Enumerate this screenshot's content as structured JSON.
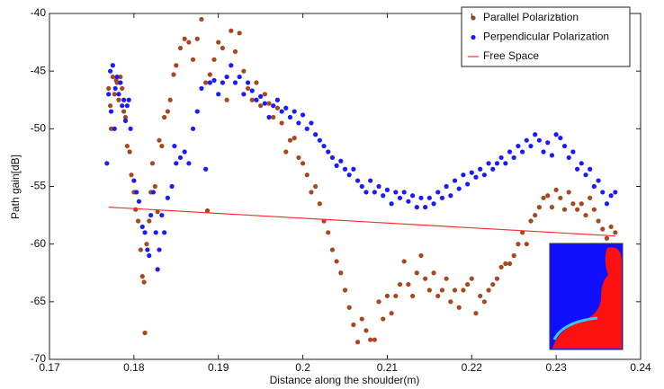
{
  "chart_data": {
    "type": "scatter",
    "x_label": "Distance along the shoulder(m)",
    "y_label": "Path gain[dB]",
    "xlim": [
      0.17,
      0.24
    ],
    "ylim": [
      -70,
      -40
    ],
    "xticks": [
      0.17,
      0.18,
      0.19,
      0.2,
      0.21,
      0.22,
      0.23,
      0.24
    ],
    "yticks": [
      -70,
      -65,
      -60,
      -55,
      -50,
      -45,
      -40
    ],
    "grid": false,
    "legend": "upper right",
    "series": [
      {
        "name": "Parallel Polarization",
        "type": "scatter",
        "color": "#a8471c",
        "x": [
          0.177,
          0.1772,
          0.1773,
          0.1775,
          0.1777,
          0.1779,
          0.178,
          0.1782,
          0.1784,
          0.1786,
          0.1788,
          0.179,
          0.1792,
          0.1795,
          0.1797,
          0.18,
          0.1802,
          0.1805,
          0.1808,
          0.181,
          0.1812,
          0.1813,
          0.1815,
          0.1818,
          0.182,
          0.1822,
          0.1825,
          0.1828,
          0.183,
          0.1833,
          0.1836,
          0.184,
          0.1843,
          0.1847,
          0.185,
          0.1855,
          0.186,
          0.1865,
          0.187,
          0.1875,
          0.188,
          0.1885,
          0.1887,
          0.189,
          0.1895,
          0.19,
          0.1905,
          0.191,
          0.1915,
          0.192,
          0.1925,
          0.193,
          0.1935,
          0.194,
          0.1945,
          0.195,
          0.1955,
          0.196,
          0.1965,
          0.197,
          0.1975,
          0.198,
          0.1985,
          0.199,
          0.1995,
          0.2,
          0.2005,
          0.201,
          0.2015,
          0.202,
          0.2025,
          0.203,
          0.2035,
          0.204,
          0.2045,
          0.205,
          0.2055,
          0.206,
          0.2065,
          0.207,
          0.2075,
          0.208,
          0.2085,
          0.209,
          0.2095,
          0.21,
          0.2105,
          0.211,
          0.2115,
          0.212,
          0.2125,
          0.213,
          0.2135,
          0.214,
          0.2145,
          0.215,
          0.2155,
          0.216,
          0.2165,
          0.217,
          0.2175,
          0.218,
          0.2185,
          0.219,
          0.2195,
          0.22,
          0.2205,
          0.221,
          0.2215,
          0.222,
          0.2225,
          0.223,
          0.2235,
          0.224,
          0.2245,
          0.225,
          0.2255,
          0.226,
          0.2265,
          0.227,
          0.2275,
          0.228,
          0.2285,
          0.229,
          0.2295,
          0.23,
          0.2305,
          0.231,
          0.2315,
          0.232,
          0.2325,
          0.233,
          0.2335,
          0.234,
          0.2345,
          0.235,
          0.2355,
          0.236,
          0.2365,
          0.237
        ],
        "values": [
          -46.5,
          -48,
          -50,
          -45.5,
          -47,
          -45.8,
          -46,
          -47.5,
          -45.5,
          -46.5,
          -48.5,
          -49,
          -51.5,
          -52,
          -54,
          -55.5,
          -57,
          -58,
          -60.5,
          -62.8,
          -63.3,
          -67.7,
          -60,
          -58,
          -55.5,
          -53,
          -55,
          -57.2,
          -51,
          -51.5,
          -49,
          -48.5,
          -47.5,
          -45.3,
          -44.5,
          -43,
          -42.2,
          -42.5,
          -44,
          -42.2,
          -40.5,
          -46,
          -57.1,
          -45.3,
          -44,
          -42.5,
          -43,
          -47.5,
          -41.5,
          -43.3,
          -41.7,
          -45,
          -46.5,
          -47.5,
          -46,
          -48,
          -47,
          -47.8,
          -49,
          -48.2,
          -49.5,
          -52,
          -51,
          -50.8,
          -52.5,
          -53,
          -54,
          -55.5,
          -55,
          -56.5,
          -58,
          -59,
          -60.5,
          -61.5,
          -62.5,
          -64,
          -65.5,
          -67,
          -68.5,
          -66.5,
          -67.5,
          -68.3,
          -68.3,
          -65,
          -66.5,
          -64.5,
          -66,
          -64.5,
          -63.5,
          -61.5,
          -63.5,
          -64.5,
          -62.5,
          -61,
          -63,
          -64,
          -62.5,
          -64.5,
          -64,
          -63,
          -65,
          -64,
          -65.5,
          -64,
          -63.5,
          -63,
          -66,
          -64.5,
          -65,
          -64,
          -63.5,
          -63,
          -62,
          -61.7,
          -61.7,
          -61,
          -60,
          -59,
          -60,
          -58,
          -57.5,
          -56.8,
          -56,
          -55.8,
          -56.8,
          -55.3,
          -56,
          -57,
          -55.5,
          -56.5,
          -57,
          -56.5,
          -57.5,
          -56,
          -57,
          -58,
          -58.7,
          -59.5,
          -58.5,
          -59
        ]
      },
      {
        "name": "Perpendicular Polarization",
        "type": "scatter",
        "color": "#1a1aff",
        "x": [
          0.1768,
          0.177,
          0.1772,
          0.1773,
          0.1775,
          0.1777,
          0.1778,
          0.178,
          0.1782,
          0.1784,
          0.1786,
          0.1788,
          0.179,
          0.1792,
          0.1794,
          0.1796,
          0.18,
          0.1803,
          0.1806,
          0.181,
          0.1813,
          0.1816,
          0.1818,
          0.182,
          0.1823,
          0.1826,
          0.1828,
          0.183,
          0.1833,
          0.1836,
          0.184,
          0.1845,
          0.1848,
          0.185,
          0.1855,
          0.186,
          0.1865,
          0.187,
          0.1875,
          0.188,
          0.1885,
          0.189,
          0.1895,
          0.19,
          0.1905,
          0.191,
          0.1915,
          0.192,
          0.1925,
          0.193,
          0.1935,
          0.194,
          0.1945,
          0.195,
          0.1955,
          0.196,
          0.1965,
          0.197,
          0.1975,
          0.198,
          0.1985,
          0.199,
          0.1995,
          0.2,
          0.2005,
          0.201,
          0.2015,
          0.202,
          0.2025,
          0.203,
          0.2035,
          0.204,
          0.2045,
          0.205,
          0.2055,
          0.206,
          0.2065,
          0.207,
          0.2075,
          0.208,
          0.2085,
          0.209,
          0.2095,
          0.21,
          0.2105,
          0.211,
          0.2115,
          0.212,
          0.2125,
          0.213,
          0.2135,
          0.214,
          0.2145,
          0.215,
          0.2155,
          0.216,
          0.2165,
          0.217,
          0.2175,
          0.218,
          0.2185,
          0.219,
          0.2195,
          0.22,
          0.2205,
          0.221,
          0.2215,
          0.222,
          0.2225,
          0.223,
          0.2235,
          0.224,
          0.2245,
          0.225,
          0.2255,
          0.226,
          0.2265,
          0.227,
          0.2275,
          0.228,
          0.2285,
          0.229,
          0.2295,
          0.23,
          0.2305,
          0.231,
          0.2315,
          0.232,
          0.2325,
          0.233,
          0.2335,
          0.234,
          0.2345,
          0.235,
          0.2355,
          0.236,
          0.2365,
          0.237
        ],
        "values": [
          -53,
          -47,
          -45,
          -48.5,
          -44.5,
          -50,
          -46.5,
          -45.5,
          -47,
          -46,
          -48,
          -47.5,
          -49.3,
          -48,
          -47.5,
          -50,
          -54.5,
          -55.5,
          -56.3,
          -58.5,
          -59,
          -60.5,
          -61,
          -57.5,
          -55.5,
          -59,
          -62.2,
          -60.5,
          -57.5,
          -59,
          -56,
          -55,
          -51.5,
          -53,
          -52.5,
          -52,
          -53,
          -50,
          -48.5,
          -46.5,
          -53.5,
          -46,
          -45.8,
          -47,
          -46,
          -45.5,
          -44.5,
          -46,
          -45.5,
          -47,
          -46,
          -46.7,
          -47.5,
          -47.2,
          -47.8,
          -49,
          -48,
          -47.5,
          -48.5,
          -48.2,
          -49,
          -48.5,
          -49.5,
          -48.8,
          -50,
          -49.5,
          -50.5,
          -51,
          -51.5,
          -52,
          -52.5,
          -53.2,
          -52.8,
          -53.5,
          -54,
          -53.5,
          -54.5,
          -55,
          -55.5,
          -54.5,
          -55.5,
          -55,
          -55.8,
          -55.3,
          -56.5,
          -55.5,
          -56,
          -55.5,
          -56.3,
          -55.8,
          -56.8,
          -56,
          -56.8,
          -56,
          -56.5,
          -55.5,
          -56,
          -55,
          -55.8,
          -54.5,
          -55.2,
          -54,
          -54.8,
          -53.8,
          -54.2,
          -53.5,
          -54,
          -53,
          -53.5,
          -53,
          -52.5,
          -53,
          -52,
          -52.5,
          -51.5,
          -52,
          -51,
          -51.5,
          -50.5,
          -51,
          -52,
          -51.2,
          -52.3,
          -50.5,
          -50.8,
          -51.5,
          -52.5,
          -52,
          -53.5,
          -53,
          -54,
          -53.5,
          -55,
          -54.5,
          -55.5,
          -56.5,
          -55.8,
          -55.5
        ]
      },
      {
        "name": "Free Space",
        "type": "line",
        "color": "#ff3030",
        "x": [
          0.177,
          0.237
        ],
        "values": [
          -56.8,
          -59.3
        ]
      }
    ]
  }
}
